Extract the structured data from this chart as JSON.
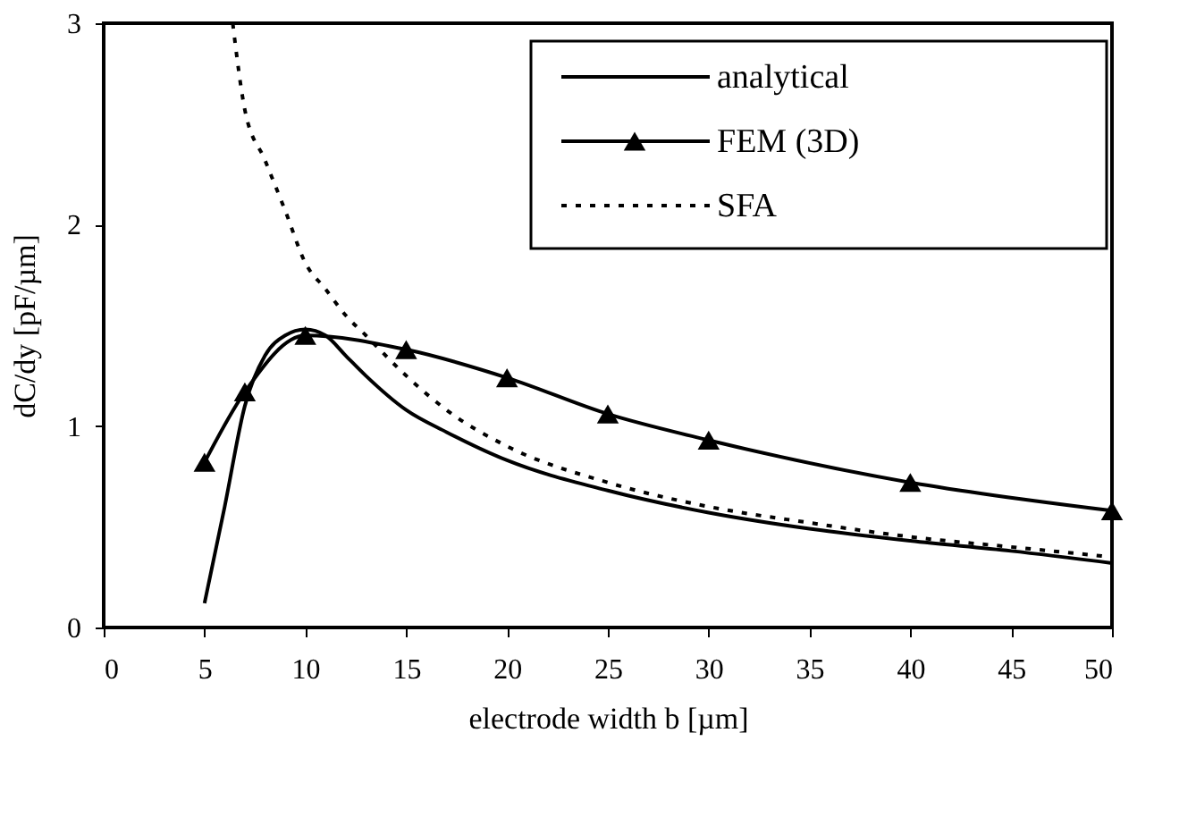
{
  "chart_data": {
    "type": "line",
    "xlabel": "electrode width b [µm]",
    "ylabel": "dC/dy [pF/µm]",
    "xlim": [
      0,
      50
    ],
    "ylim": [
      0,
      3
    ],
    "xticks": [
      0,
      5,
      10,
      15,
      20,
      25,
      30,
      35,
      40,
      45,
      50
    ],
    "yticks": [
      0,
      1,
      2,
      3
    ],
    "grid": false,
    "legend": "top right",
    "series": [
      {
        "name": "analytical",
        "color": "#000000",
        "line_style": "solid",
        "marker": "none",
        "x": [
          5,
          6,
          7,
          8,
          9,
          10,
          11,
          12,
          13,
          15,
          17,
          20,
          25,
          30,
          35,
          40,
          45,
          50
        ],
        "values": [
          0.12,
          0.6,
          1.1,
          1.35,
          1.45,
          1.48,
          1.45,
          1.35,
          1.25,
          1.08,
          0.97,
          0.83,
          0.68,
          0.57,
          0.49,
          0.43,
          0.38,
          0.32
        ]
      },
      {
        "name": "FEM (3D)",
        "color": "#000000",
        "line_style": "solid",
        "marker": "triangle",
        "x": [
          5,
          7,
          10,
          15,
          20,
          25,
          30,
          40,
          50
        ],
        "values": [
          0.82,
          1.17,
          1.45,
          1.38,
          1.24,
          1.06,
          0.93,
          0.72,
          0.58
        ]
      },
      {
        "name": "SFA",
        "color": "#000000",
        "line_style": "dotted",
        "marker": "none",
        "x": [
          6.4,
          7,
          8,
          9,
          10,
          11,
          12,
          13,
          15,
          17,
          20,
          25,
          30,
          35,
          40,
          45,
          50
        ],
        "values": [
          3,
          2.57,
          2.32,
          2.07,
          1.81,
          1.68,
          1.55,
          1.45,
          1.25,
          1.08,
          0.9,
          0.72,
          0.6,
          0.52,
          0.45,
          0.4,
          0.35
        ]
      }
    ]
  }
}
